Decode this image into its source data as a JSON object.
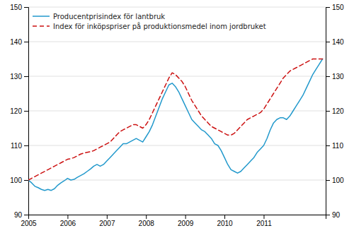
{
  "chart_data": {
    "type": "line",
    "x": [
      2005.0,
      2005.0833333333333,
      2005.1666666666667,
      2005.25,
      2005.3333333333333,
      2005.4166666666667,
      2005.5,
      2005.5833333333333,
      2005.6666666666667,
      2005.75,
      2005.8333333333333,
      2005.9166666666667,
      2006.0,
      2006.0833333333333,
      2006.1666666666667,
      2006.25,
      2006.3333333333333,
      2006.4166666666667,
      2006.5,
      2006.5833333333333,
      2006.6666666666667,
      2006.75,
      2006.8333333333333,
      2006.9166666666667,
      2007.0,
      2007.0833333333333,
      2007.1666666666667,
      2007.25,
      2007.3333333333333,
      2007.4166666666667,
      2007.5,
      2007.5833333333333,
      2007.6666666666667,
      2007.75,
      2007.8333333333333,
      2007.9166666666667,
      2008.0,
      2008.0833333333333,
      2008.1666666666667,
      2008.25,
      2008.3333333333333,
      2008.4166666666667,
      2008.5,
      2008.5833333333333,
      2008.6666666666667,
      2008.75,
      2008.8333333333333,
      2008.9166666666667,
      2009.0,
      2009.0833333333333,
      2009.1666666666667,
      2009.25,
      2009.3333333333333,
      2009.4166666666667,
      2009.5,
      2009.5833333333333,
      2009.6666666666667,
      2009.75,
      2009.8333333333333,
      2009.9166666666667,
      2010.0,
      2010.0833333333333,
      2010.1666666666667,
      2010.25,
      2010.3333333333333,
      2010.4166666666667,
      2010.5,
      2010.5833333333333,
      2010.6666666666667,
      2010.75,
      2010.8333333333333,
      2010.9166666666667,
      2011.0,
      2011.0833333333333,
      2011.1666666666667,
      2011.25,
      2011.3333333333333,
      2011.4166666666667,
      2011.5,
      2011.5833333333333,
      2011.6666666666667,
      2011.75,
      2011.8333333333333,
      2011.9166666666667,
      2012.0,
      2012.0833333333333,
      2012.1666666666667,
      2012.25,
      2012.3333333333333,
      2012.4166666666667,
      2012.5
    ],
    "series": [
      {
        "name": "Producentprisindex för lantbruk",
        "color": "#2299cc",
        "line_style": "solid",
        "values": [
          100.0,
          99.2,
          98.2,
          97.8,
          97.3,
          97.0,
          97.3,
          97.0,
          97.5,
          98.5,
          99.2,
          99.8,
          100.5,
          100.0,
          100.2,
          100.8,
          101.3,
          101.8,
          102.5,
          103.2,
          104.0,
          104.5,
          104.0,
          104.5,
          105.5,
          106.5,
          107.5,
          108.5,
          109.5,
          110.5,
          110.5,
          111.0,
          111.5,
          112.0,
          111.5,
          111.0,
          112.5,
          114.0,
          116.0,
          118.5,
          121.0,
          123.5,
          125.5,
          127.5,
          128.0,
          127.0,
          125.5,
          123.5,
          121.5,
          119.5,
          117.5,
          116.5,
          115.5,
          114.5,
          114.0,
          113.0,
          112.0,
          110.5,
          110.0,
          108.5,
          106.5,
          104.5,
          103.0,
          102.5,
          102.0,
          102.5,
          103.5,
          104.5,
          105.5,
          106.5,
          108.0,
          109.0,
          110.0,
          112.0,
          114.5,
          116.5,
          117.5,
          118.0,
          118.0,
          117.5,
          118.5,
          120.0,
          121.5,
          123.0,
          124.5,
          126.5,
          128.5,
          130.5,
          132.0,
          133.5,
          135.0
        ]
      },
      {
        "name": "Index för inköpspriser på produktionsmedel inom jordbruket",
        "color": "#cc1111",
        "line_style": "dashed",
        "values": [
          100.0,
          100.5,
          101.0,
          101.5,
          102.0,
          102.5,
          103.0,
          103.5,
          104.0,
          104.5,
          105.0,
          105.5,
          106.0,
          106.2,
          106.5,
          107.0,
          107.5,
          107.8,
          108.0,
          108.2,
          108.5,
          109.0,
          109.5,
          110.0,
          110.5,
          111.0,
          112.0,
          113.0,
          114.0,
          114.5,
          115.0,
          115.5,
          116.0,
          116.0,
          115.5,
          115.0,
          116.0,
          117.5,
          119.5,
          121.5,
          123.5,
          125.5,
          127.5,
          129.5,
          131.0,
          130.5,
          129.5,
          128.5,
          127.0,
          125.0,
          123.0,
          121.5,
          120.0,
          118.5,
          117.5,
          116.5,
          115.5,
          115.0,
          114.5,
          114.0,
          113.5,
          113.0,
          113.0,
          113.5,
          114.5,
          115.5,
          116.5,
          117.5,
          118.0,
          118.5,
          119.0,
          119.5,
          120.5,
          122.0,
          123.5,
          125.0,
          126.5,
          128.0,
          129.5,
          130.5,
          131.5,
          132.0,
          132.5,
          133.0,
          133.5,
          134.0,
          134.5,
          135.0,
          135.0,
          135.0,
          135.0
        ]
      }
    ],
    "xlim": [
      2005.0,
      2012.58
    ],
    "xticks": [
      2005,
      2006,
      2007,
      2008,
      2009,
      2010,
      2011
    ],
    "ylim": [
      90,
      150
    ],
    "yticks": [
      90,
      100,
      110,
      120,
      130,
      140,
      150
    ],
    "y2lim": [
      90,
      150
    ],
    "y2ticks": [
      90,
      100,
      110,
      120,
      130,
      140,
      150
    ],
    "grid": true,
    "legend": "upper left"
  }
}
